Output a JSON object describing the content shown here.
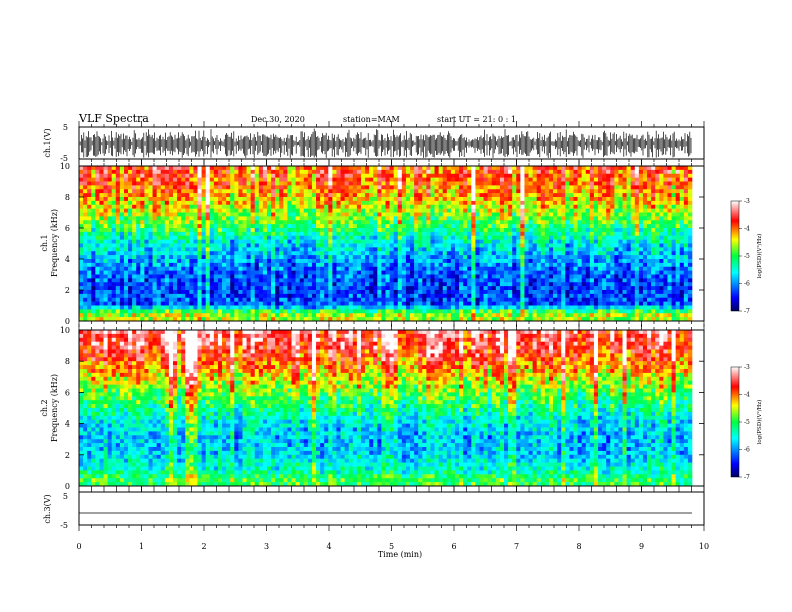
{
  "header": {
    "title": "VLF Spectra",
    "date": "Dec.30, 2020",
    "station": "station=MAM",
    "start": "start  UT =   21: 0  : 1"
  },
  "chart_data": [
    {
      "type": "line",
      "title": "",
      "ylabel": "ch.1(V)",
      "ylim": [
        -5,
        5
      ],
      "yticks": [
        "5",
        "-5"
      ],
      "series_description": "dense impulsive waveform"
    },
    {
      "type": "heatmap",
      "ylabel_line1": "ch.1",
      "ylabel_line2": "Frequency (kHz)",
      "ylim": [
        0,
        10
      ],
      "yticks": [
        "0",
        "2",
        "4",
        "6",
        "8",
        "10"
      ],
      "colorbar": {
        "label": "log(PSD)(V²/Hz)",
        "range": [
          -7,
          -3
        ],
        "ticks": [
          "-3",
          "-4",
          "-5",
          "-6",
          "-7"
        ]
      },
      "band_profile": [
        {
          "freq_khz": 0.5,
          "log_psd": -4.6
        },
        {
          "freq_khz": 1,
          "log_psd": -6.2
        },
        {
          "freq_khz": 2,
          "log_psd": -6.3
        },
        {
          "freq_khz": 3,
          "log_psd": -6.2
        },
        {
          "freq_khz": 4,
          "log_psd": -5.9
        },
        {
          "freq_khz": 5,
          "log_psd": -5.6
        },
        {
          "freq_khz": 6,
          "log_psd": -5.1
        },
        {
          "freq_khz": 7,
          "log_psd": -4.6
        },
        {
          "freq_khz": 8,
          "log_psd": -4.2
        },
        {
          "freq_khz": 9,
          "log_psd": -3.9
        },
        {
          "freq_khz": 10,
          "log_psd": -3.8
        }
      ]
    },
    {
      "type": "heatmap",
      "ylabel_line1": "ch.2",
      "ylabel_line2": "Frequency (kHz)",
      "ylim": [
        0,
        10
      ],
      "yticks": [
        "0",
        "2",
        "4",
        "6",
        "8",
        "10"
      ],
      "colorbar": {
        "label": "log(PSD)(V²/Hz)",
        "range": [
          -7,
          -3
        ],
        "ticks": [
          "-3",
          "-4",
          "-5",
          "-6",
          "-7"
        ]
      },
      "band_profile": [
        {
          "freq_khz": 0.5,
          "log_psd": -5.0
        },
        {
          "freq_khz": 1,
          "log_psd": -5.4
        },
        {
          "freq_khz": 2,
          "log_psd": -5.7
        },
        {
          "freq_khz": 3,
          "log_psd": -5.8
        },
        {
          "freq_khz": 4,
          "log_psd": -5.6
        },
        {
          "freq_khz": 5,
          "log_psd": -5.2
        },
        {
          "freq_khz": 6,
          "log_psd": -4.8
        },
        {
          "freq_khz": 7,
          "log_psd": -4.3
        },
        {
          "freq_khz": 8,
          "log_psd": -3.9
        },
        {
          "freq_khz": 9,
          "log_psd": -3.5
        },
        {
          "freq_khz": 10,
          "log_psd": -3.3
        }
      ]
    },
    {
      "type": "line",
      "ylabel": "ch.3(V)",
      "ylim": [
        -5,
        5
      ],
      "yticks": [
        "5",
        "-5"
      ],
      "series": [
        {
          "values_constant": -1.5
        }
      ]
    }
  ],
  "xaxis": {
    "label": "Time (min)",
    "xlim": [
      0,
      10
    ],
    "ticks": [
      "0",
      "1",
      "2",
      "3",
      "4",
      "5",
      "6",
      "7",
      "8",
      "9",
      "10"
    ]
  }
}
